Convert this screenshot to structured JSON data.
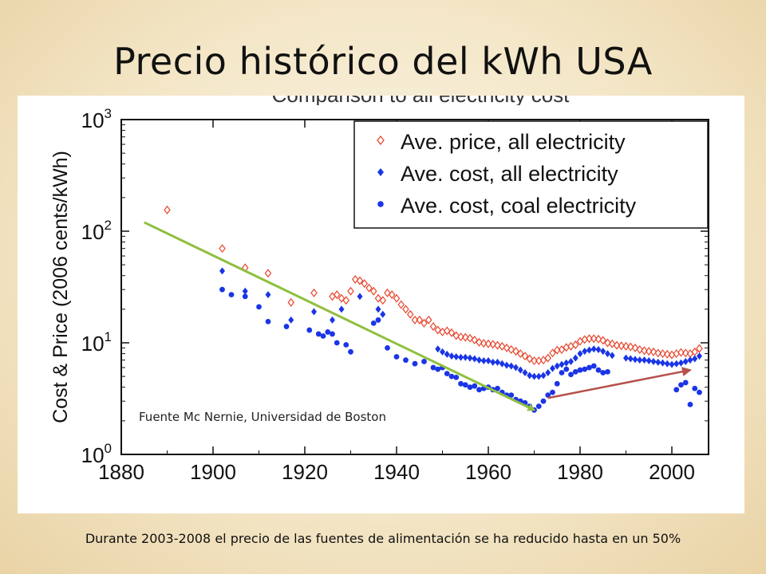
{
  "slide": {
    "title": "Precio histórico del kWh USA",
    "source_note": "Fuente Mc Nernie, Universidad de Boston",
    "footnote": "Durante 2003-2008 el precio de las fuentes de alimentación se ha reducido hasta en un 50%"
  },
  "chart_data": {
    "type": "scatter",
    "title": "Comparison to all electricity cost",
    "xlabel": "",
    "ylabel": "Cost & Price (2006 cents/kWh)",
    "xlim": [
      1880,
      2008
    ],
    "ylim": [
      1,
      1000
    ],
    "yscale": "log",
    "x_ticks": [
      1880,
      1900,
      1920,
      1940,
      1960,
      1980,
      2000
    ],
    "y_ticks": [
      {
        "value": 1,
        "base": "10",
        "exp": "0"
      },
      {
        "value": 10,
        "base": "10",
        "exp": "1"
      },
      {
        "value": 100,
        "base": "10",
        "exp": "2"
      },
      {
        "value": 1000,
        "base": "10",
        "exp": "3"
      }
    ],
    "grid": false,
    "legend_position": "top-right",
    "series": [
      {
        "name": "Ave. price, all electricity",
        "marker": "diamond-open",
        "color": "#e8452c",
        "x": [
          1890,
          1902,
          1907,
          1912,
          1917,
          1922,
          1926,
          1927,
          1928,
          1929,
          1930,
          1931,
          1932,
          1933,
          1934,
          1935,
          1936,
          1937,
          1938,
          1939,
          1940,
          1941,
          1942,
          1943,
          1944,
          1945,
          1946,
          1947,
          1948,
          1949,
          1950,
          1951,
          1952,
          1953,
          1954,
          1955,
          1956,
          1957,
          1958,
          1959,
          1960,
          1961,
          1962,
          1963,
          1964,
          1965,
          1966,
          1967,
          1968,
          1969,
          1970,
          1971,
          1972,
          1973,
          1974,
          1975,
          1976,
          1977,
          1978,
          1979,
          1980,
          1981,
          1982,
          1983,
          1984,
          1985,
          1986,
          1987,
          1988,
          1989,
          1990,
          1991,
          1992,
          1993,
          1994,
          1995,
          1996,
          1997,
          1998,
          1999,
          2000,
          2001,
          2002,
          2003,
          2004,
          2005,
          2006
        ],
        "y": [
          155,
          70,
          47,
          42,
          23,
          28,
          26,
          27,
          25,
          24,
          29,
          37,
          36,
          34,
          31,
          29,
          25,
          24,
          28,
          27,
          25,
          22,
          20,
          18,
          16,
          16,
          15,
          16,
          14,
          13,
          12.5,
          12.8,
          12.3,
          11.6,
          11.3,
          11.2,
          11.0,
          10.6,
          10.1,
          9.9,
          9.8,
          9.7,
          9.5,
          9.3,
          9.0,
          8.7,
          8.4,
          8.0,
          7.6,
          7.2,
          6.9,
          6.9,
          7.0,
          7.3,
          8.1,
          8.6,
          8.7,
          9.1,
          9.3,
          9.6,
          10.3,
          10.7,
          10.9,
          10.9,
          10.8,
          10.5,
          10.0,
          9.8,
          9.5,
          9.4,
          9.3,
          9.2,
          9.0,
          8.7,
          8.5,
          8.4,
          8.3,
          8.1,
          8.0,
          7.9,
          7.8,
          8.0,
          8.2,
          8.1,
          8.0,
          8.3,
          8.9
        ]
      },
      {
        "name": "Ave. cost, all electricity",
        "marker": "diamond-filled",
        "color": "#1a35e6",
        "x": [
          1902,
          1907,
          1912,
          1917,
          1922,
          1926,
          1928,
          1932,
          1936,
          1937,
          1949,
          1950,
          1951,
          1952,
          1953,
          1954,
          1955,
          1956,
          1957,
          1958,
          1959,
          1960,
          1961,
          1962,
          1963,
          1964,
          1965,
          1966,
          1967,
          1968,
          1969,
          1970,
          1971,
          1972,
          1973,
          1974,
          1975,
          1976,
          1977,
          1978,
          1979,
          1980,
          1981,
          1982,
          1983,
          1984,
          1985,
          1986,
          1987,
          1990,
          1991,
          1992,
          1993,
          1994,
          1995,
          1996,
          1997,
          1998,
          1999,
          2000,
          2001,
          2002,
          2003,
          2004,
          2005,
          2006
        ],
        "y": [
          44,
          29,
          27,
          16,
          19,
          16,
          20,
          26,
          20,
          18,
          8.8,
          8.3,
          7.9,
          7.6,
          7.5,
          7.4,
          7.4,
          7.3,
          7.2,
          7.0,
          6.9,
          6.9,
          6.7,
          6.7,
          6.5,
          6.3,
          6.2,
          6.0,
          5.7,
          5.4,
          5.1,
          5.0,
          5.0,
          5.1,
          5.4,
          5.9,
          6.2,
          6.4,
          6.6,
          6.8,
          7.3,
          8.0,
          8.4,
          8.6,
          8.8,
          8.7,
          8.4,
          8.0,
          7.7,
          7.3,
          7.2,
          7.1,
          7.0,
          7.0,
          6.9,
          6.8,
          6.7,
          6.6,
          6.5,
          6.4,
          6.5,
          6.6,
          6.8,
          7.0,
          7.2,
          7.6
        ]
      },
      {
        "name": "Ave. cost, coal electricity",
        "marker": "circle-filled",
        "color": "#1a35e6",
        "x": [
          1902,
          1904,
          1907,
          1910,
          1912,
          1916,
          1921,
          1923,
          1924,
          1925,
          1926,
          1927,
          1929,
          1930,
          1935,
          1936,
          1938,
          1940,
          1942,
          1944,
          1946,
          1948,
          1949,
          1950,
          1951,
          1952,
          1953,
          1954,
          1955,
          1956,
          1957,
          1958,
          1959,
          1960,
          1961,
          1962,
          1963,
          1964,
          1965,
          1966,
          1967,
          1968,
          1969,
          1970,
          1971,
          1972,
          1973,
          1974,
          1975,
          1976,
          1977,
          1978,
          1979,
          1980,
          1981,
          1982,
          1983,
          1984,
          1985,
          1986,
          2001,
          2002,
          2003,
          2004,
          2005,
          2006
        ],
        "y": [
          30,
          27,
          26,
          21,
          15.5,
          14,
          13,
          12,
          11.5,
          12.5,
          12,
          10,
          9.6,
          8.3,
          15,
          16,
          9,
          7.5,
          7,
          6.5,
          6.8,
          6.0,
          5.8,
          6.0,
          5.3,
          5.0,
          4.9,
          4.3,
          4.2,
          4.0,
          4.1,
          3.8,
          3.9,
          4.0,
          3.8,
          3.9,
          3.6,
          3.4,
          3.4,
          3.1,
          3.0,
          2.9,
          2.7,
          2.5,
          2.7,
          3.0,
          3.4,
          3.6,
          4.3,
          5.4,
          5.8,
          5.2,
          5.5,
          5.7,
          5.8,
          6.0,
          6.2,
          5.7,
          5.4,
          5.5,
          3.8,
          4.2,
          4.4,
          2.8,
          3.9,
          3.6
        ]
      }
    ],
    "annotations": [
      {
        "kind": "trend-arrow",
        "color": "#8fbf3f",
        "from": [
          1885,
          120
        ],
        "to": [
          1970,
          2.5
        ]
      },
      {
        "kind": "trend-arrow",
        "color": "#b5514a",
        "from": [
          1973,
          3.2
        ],
        "to": [
          2004,
          5.7
        ]
      }
    ]
  }
}
